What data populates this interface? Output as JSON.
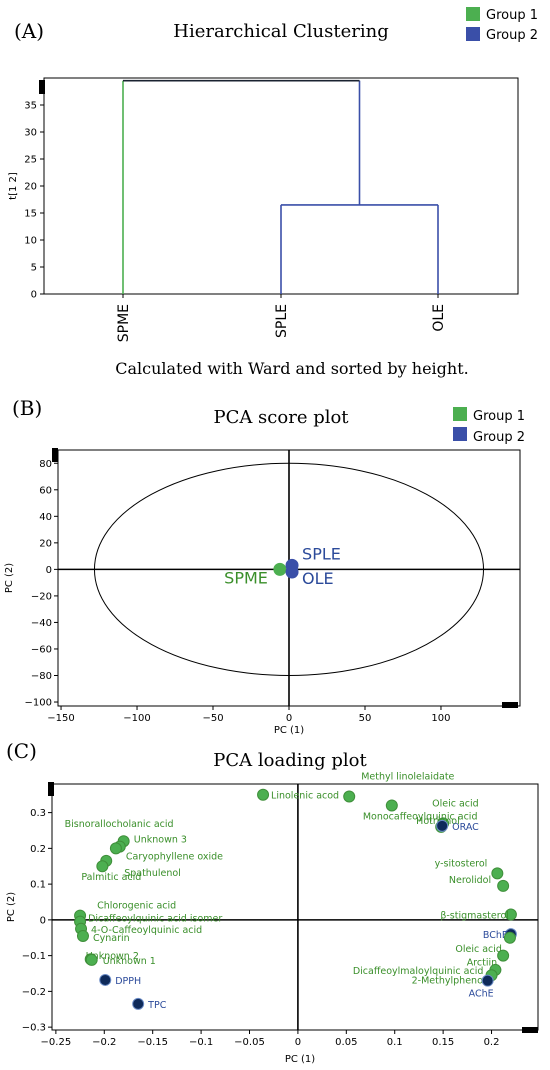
{
  "colors": {
    "group1": "#4caf50",
    "group2": "#3a4fa8",
    "navy": "#0e2a5a",
    "green_text": "#3a8f2a",
    "blue_text": "#2b4a9a"
  },
  "chart_data": [
    {
      "panel": "(A)",
      "type": "dendrogram",
      "title": "Hierarchical Clustering",
      "ylabel": "t[1 2]",
      "ylim": [
        0,
        40
      ],
      "yticks": [
        0,
        5,
        10,
        15,
        20,
        25,
        30,
        35
      ],
      "leaves": [
        "SPME",
        "SPLE",
        "OLE"
      ],
      "merges": [
        {
          "members": [
            "SPLE",
            "OLE"
          ],
          "height": 16.5
        },
        {
          "members": [
            "SPME",
            "SPLE+OLE"
          ],
          "height": 39.5
        }
      ],
      "legend": [
        {
          "name": "Group 1",
          "color": "#4caf50"
        },
        {
          "name": "Group 2",
          "color": "#3a4fa8"
        }
      ],
      "caption": "Calculated with Ward and sorted by height."
    },
    {
      "panel": "(B)",
      "type": "scatter",
      "title": "PCA score plot",
      "xlabel": "PC (1)",
      "ylabel": "PC (2)",
      "xlim": [
        -150,
        150
      ],
      "ylim": [
        -100,
        90
      ],
      "xticks": [
        -150,
        -100,
        -50,
        0,
        50,
        100
      ],
      "yticks": [
        -100,
        -80,
        -60,
        -40,
        -20,
        0,
        20,
        40,
        60,
        80
      ],
      "ellipse": {
        "cx": 0,
        "cy": 0,
        "rx": 128,
        "ry": 80
      },
      "points": [
        {
          "label": "SPME",
          "x": -6,
          "y": 0,
          "group": "Group 1"
        },
        {
          "label": "SPLE",
          "x": 2,
          "y": 3,
          "group": "Group 2"
        },
        {
          "label": "OLE",
          "x": 2,
          "y": -2,
          "group": "Group 2"
        }
      ],
      "legend": [
        {
          "name": "Group 1",
          "color": "#4caf50"
        },
        {
          "name": "Group 2",
          "color": "#3a4fa8"
        }
      ]
    },
    {
      "panel": "(C)",
      "type": "scatter",
      "title": "PCA loading plot",
      "xlabel": "PC (1)",
      "ylabel": "PC (2)",
      "xlim": [
        -0.25,
        0.25
      ],
      "ylim": [
        -0.3,
        0.38
      ],
      "xticks": [
        -0.25,
        -0.2,
        -0.15,
        -0.1,
        -0.05,
        0,
        0.05,
        0.1,
        0.15,
        0.2
      ],
      "yticks": [
        -0.3,
        -0.2,
        -0.1,
        0,
        0.1,
        0.2,
        0.3
      ],
      "points": [
        {
          "label": "Linolenic acod",
          "x": -0.036,
          "y": 0.35,
          "kind": "compound"
        },
        {
          "label": "Methyl linolelaidate",
          "x": 0.053,
          "y": 0.345,
          "kind": "compound"
        },
        {
          "label": "Monocaffeoylquinic acid",
          "x": 0.097,
          "y": 0.32,
          "kind": "compound"
        },
        {
          "label": "Oleic acid",
          "x": 0.15,
          "y": 0.27,
          "kind": "compound"
        },
        {
          "label": "Hotrienol",
          "x": 0.148,
          "y": 0.26,
          "kind": "compound"
        },
        {
          "label": "ORAC",
          "x": 0.149,
          "y": 0.263,
          "kind": "assay"
        },
        {
          "label": "Bisnorallocholanic acid",
          "x": -0.18,
          "y": 0.22,
          "kind": "compound"
        },
        {
          "label": "Unknown 3",
          "x": -0.184,
          "y": 0.205,
          "kind": "compound"
        },
        {
          "label": "Caryophyllene oxide",
          "x": -0.188,
          "y": 0.2,
          "kind": "compound"
        },
        {
          "label": "Spathulenol",
          "x": -0.198,
          "y": 0.165,
          "kind": "compound"
        },
        {
          "label": "Palmitic acid",
          "x": -0.202,
          "y": 0.15,
          "kind": "compound"
        },
        {
          "label": "y-sitosterol",
          "x": 0.206,
          "y": 0.13,
          "kind": "compound"
        },
        {
          "label": "Nerolidol",
          "x": 0.212,
          "y": 0.095,
          "kind": "compound"
        },
        {
          "label": "β-stigmasterol",
          "x": 0.22,
          "y": 0.015,
          "kind": "compound"
        },
        {
          "label": "Chlorogenic acid",
          "x": -0.225,
          "y": 0.012,
          "kind": "compound"
        },
        {
          "label": "Dicaffeoylquinic acid isomer",
          "x": -0.225,
          "y": -0.005,
          "kind": "compound"
        },
        {
          "label": "4-O-Caffeoylquinic acid",
          "x": -0.224,
          "y": -0.025,
          "kind": "compound"
        },
        {
          "label": "Cynarin",
          "x": -0.222,
          "y": -0.045,
          "kind": "compound"
        },
        {
          "label": "Unknown 2",
          "x": -0.214,
          "y": -0.11,
          "kind": "compound"
        },
        {
          "label": "Unknown 1",
          "x": -0.213,
          "y": -0.112,
          "kind": "compound"
        },
        {
          "label": "BChE",
          "x": 0.22,
          "y": -0.04,
          "kind": "assay"
        },
        {
          "label": "Oleic acid",
          "x": 0.219,
          "y": -0.05,
          "kind": "compound"
        },
        {
          "label": "Arctiin",
          "x": 0.212,
          "y": -0.1,
          "kind": "compound"
        },
        {
          "label": "Dicaffeoylmaloylquinic acid",
          "x": 0.204,
          "y": -0.14,
          "kind": "compound"
        },
        {
          "label": "2-Methylphenol",
          "x": 0.2,
          "y": -0.155,
          "kind": "compound"
        },
        {
          "label": "AChE",
          "x": 0.196,
          "y": -0.17,
          "kind": "assay"
        },
        {
          "label": "DPPH",
          "x": -0.199,
          "y": -0.168,
          "kind": "assay"
        },
        {
          "label": "TPC",
          "x": -0.165,
          "y": -0.235,
          "kind": "assay"
        }
      ]
    }
  ]
}
